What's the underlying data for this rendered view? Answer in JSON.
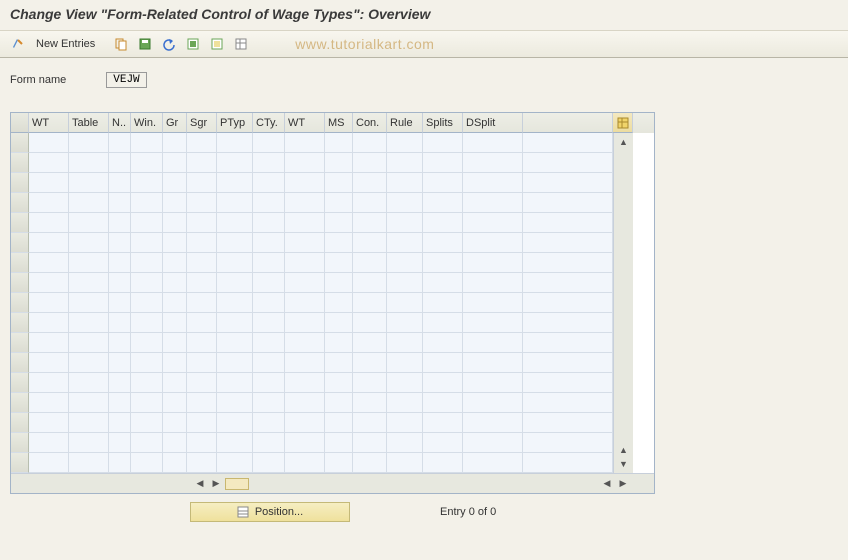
{
  "title": "Change View \"Form-Related Control of Wage Types\": Overview",
  "toolbar": {
    "new_entries_label": "New Entries"
  },
  "watermark": "www.tutorialkart.com",
  "form": {
    "name_label": "Form name",
    "name_value": "VEJW"
  },
  "grid": {
    "columns": [
      "WT",
      "Table",
      "N..",
      "Win.",
      "Gr",
      "Sgr",
      "PTyp",
      "CTy.",
      "WT",
      "MS",
      "Con.",
      "Rule",
      "Splits",
      "DSplit"
    ],
    "row_count": 17,
    "background_color": "#f2f6fb",
    "gridline_color": "#d5dde7",
    "header_bg": "#e8e9df"
  },
  "footer": {
    "position_label": "Position...",
    "entry_text": "Entry 0 of 0"
  },
  "colors": {
    "page_bg": "#f3f1e9",
    "accent_yellow": "#efe19c",
    "border_gray": "#a3b4c8",
    "watermark": "#c9a05a"
  }
}
